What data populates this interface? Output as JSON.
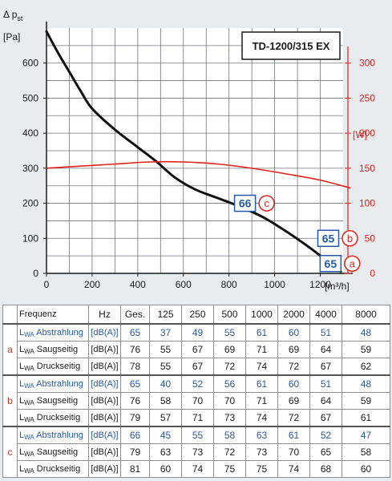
{
  "chart_data": {
    "type": "line",
    "model_box": "TD-1200/315 EX",
    "y_left_label_lines": [
      "Δ p",
      "st"
    ],
    "y_left_unit": "[Pa]",
    "y_right_unit": "[W]",
    "x_unit": "[m³/h]",
    "xlim": [
      0,
      1300
    ],
    "ylim_left": [
      0,
      700
    ],
    "ylim_right": [
      0,
      350
    ],
    "x_ticks": [
      0,
      200,
      400,
      600,
      800,
      1000,
      1200
    ],
    "y_left_ticks": [
      0,
      100,
      200,
      300,
      400,
      500,
      600
    ],
    "y_right_ticks": [
      0,
      50,
      100,
      150,
      200,
      250,
      300
    ],
    "grid": true,
    "series": [
      {
        "axis": "left",
        "color": "#111111",
        "x": [
          0,
          50,
          100,
          150,
          200,
          300,
          400,
          480,
          560,
          650,
          750,
          850,
          950,
          1050,
          1150,
          1250,
          1290
        ],
        "y": [
          690,
          630,
          575,
          520,
          470,
          410,
          360,
          320,
          275,
          240,
          215,
          190,
          160,
          120,
          75,
          25,
          5
        ]
      },
      {
        "axis": "right",
        "color": "#e3201b",
        "x": [
          0,
          150,
          300,
          450,
          600,
          750,
          900,
          1050,
          1200,
          1330
        ],
        "y": [
          150,
          153,
          156,
          159,
          159,
          156,
          150,
          142,
          133,
          122
        ]
      }
    ],
    "annotations": [
      {
        "noise": "66",
        "letter": "c",
        "x": 870,
        "y": 200
      },
      {
        "noise": "65",
        "letter": "b",
        "x": 1235,
        "y": 100
      },
      {
        "noise": "65",
        "letter": "a",
        "x": 1245,
        "y": 28
      }
    ]
  },
  "table": {
    "header": {
      "freq_label": "Frequenz",
      "hz_label": "Hz",
      "ges_label": "Ges.",
      "bands": [
        "125",
        "250",
        "500",
        "1000",
        "2000",
        "4000",
        "8000"
      ]
    },
    "groups": [
      {
        "letter": "a",
        "rows": [
          {
            "prefix": "L",
            "sub": "WA",
            "label": "Abstrahlung",
            "unit": "[dB(A)]",
            "blue": true,
            "ges": "65",
            "values": [
              "37",
              "49",
              "55",
              "61",
              "60",
              "51",
              "48"
            ]
          },
          {
            "prefix": "L",
            "sub": "WA",
            "label": "Saugseitig",
            "unit": "[dB(A)]",
            "blue": false,
            "ges": "76",
            "values": [
              "55",
              "67",
              "69",
              "71",
              "69",
              "64",
              "59"
            ]
          },
          {
            "prefix": "L",
            "sub": "WA",
            "label": "Druckseitig",
            "unit": "[dB(A)]",
            "blue": false,
            "ges": "78",
            "values": [
              "55",
              "67",
              "72",
              "74",
              "72",
              "67",
              "62"
            ]
          }
        ]
      },
      {
        "letter": "b",
        "rows": [
          {
            "prefix": "L",
            "sub": "WA",
            "label": "Abstrahlung",
            "unit": "[dB(A)]",
            "blue": true,
            "ges": "65",
            "values": [
              "40",
              "52",
              "56",
              "61",
              "60",
              "51",
              "48"
            ]
          },
          {
            "prefix": "L",
            "sub": "WA",
            "label": "Saugseitig",
            "unit": "[dB(A)]",
            "blue": false,
            "ges": "76",
            "values": [
              "58",
              "70",
              "70",
              "71",
              "69",
              "64",
              "59"
            ]
          },
          {
            "prefix": "L",
            "sub": "WA",
            "label": "Druckseitig",
            "unit": "[dB(A)]",
            "blue": false,
            "ges": "79",
            "values": [
              "57",
              "71",
              "73",
              "74",
              "72",
              "67",
              "61"
            ]
          }
        ]
      },
      {
        "letter": "c",
        "rows": [
          {
            "prefix": "L",
            "sub": "WA",
            "label": "Abstrahlung",
            "unit": "[dB(A)]",
            "blue": true,
            "ges": "66",
            "values": [
              "45",
              "55",
              "58",
              "63",
              "61",
              "52",
              "47"
            ]
          },
          {
            "prefix": "L",
            "sub": "WA",
            "label": "Saugseitig",
            "unit": "[dB(A)]",
            "blue": false,
            "ges": "79",
            "values": [
              "63",
              "73",
              "72",
              "73",
              "70",
              "65",
              "58"
            ]
          },
          {
            "prefix": "L",
            "sub": "WA",
            "label": "Druckseitig",
            "unit": "[dB(A)]",
            "blue": false,
            "ges": "81",
            "values": [
              "60",
              "74",
              "75",
              "75",
              "74",
              "68",
              "60"
            ]
          }
        ]
      }
    ]
  }
}
